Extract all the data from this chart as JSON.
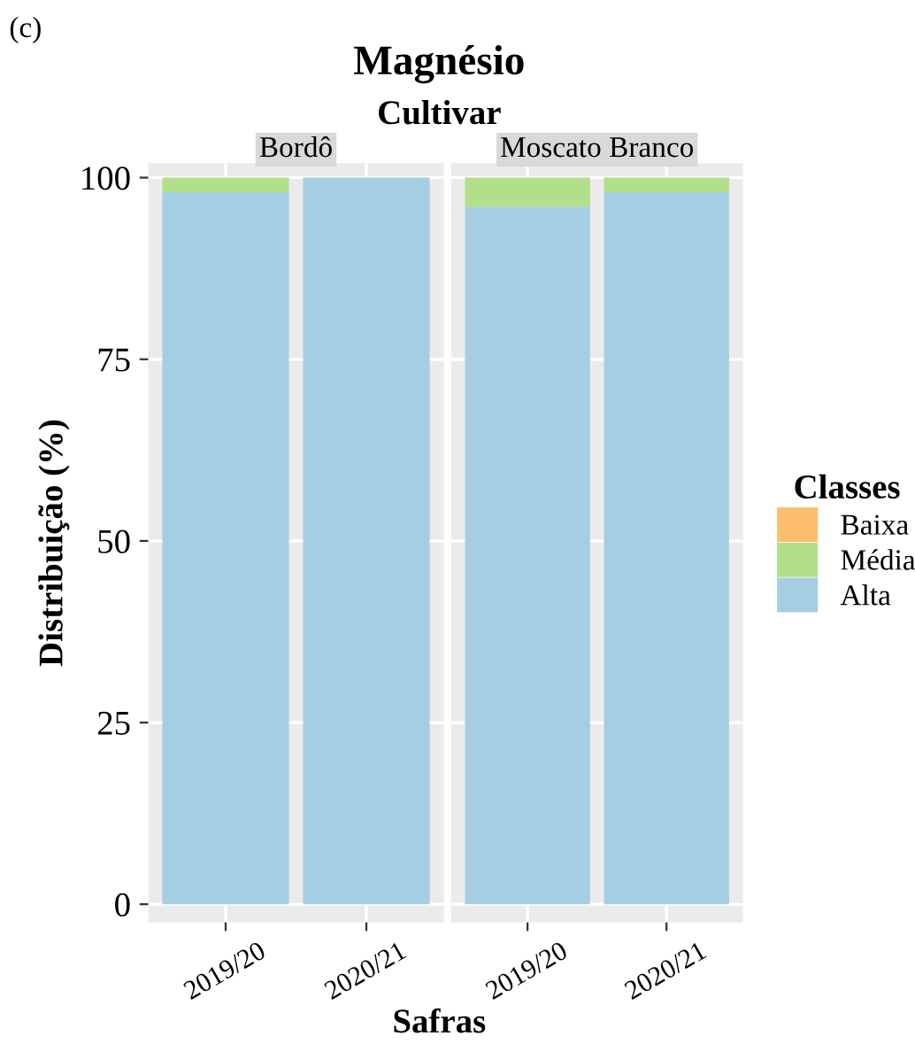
{
  "chart_data": [
    {
      "type": "bar",
      "title": "Bordô",
      "annotations": [
        "(c)",
        "Magnésio",
        "Cultivar"
      ],
      "xlabel": "Safras",
      "ylabel": "Distribuição (%)",
      "categories": [
        "2019/20",
        "2020/21"
      ],
      "stacked": true,
      "ylim": [
        -2.5,
        102
      ],
      "yticks": [
        0,
        25,
        50,
        75,
        100
      ],
      "grid": true,
      "series": [
        {
          "color": "#a6cee3",
          "values": [
            98,
            100
          ]
        },
        {
          "color": "#b2df8a",
          "values": [
            2,
            0
          ]
        },
        {
          "color": "#fdbf6f",
          "values": [
            0,
            0
          ]
        }
      ]
    },
    {
      "type": "bar",
      "title": "Moscato Branco",
      "categories": [
        "2019/20",
        "2020/21"
      ],
      "stacked": true,
      "ylim": [
        -2.5,
        102
      ],
      "yticks": [
        0,
        25,
        50,
        75,
        100
      ],
      "grid": true,
      "tick_labels": "x",
      "legend": "right",
      "legend_title": "Classes",
      "series": [
        {
          "name": "Alta",
          "color": "#a6cee3",
          "values": [
            96,
            98
          ]
        },
        {
          "name": "Média",
          "color": "#b2df8a",
          "values": [
            4,
            2
          ]
        },
        {
          "name": "Baixa",
          "color": "#fdbf6f",
          "values": [
            0,
            0
          ]
        }
      ]
    }
  ]
}
